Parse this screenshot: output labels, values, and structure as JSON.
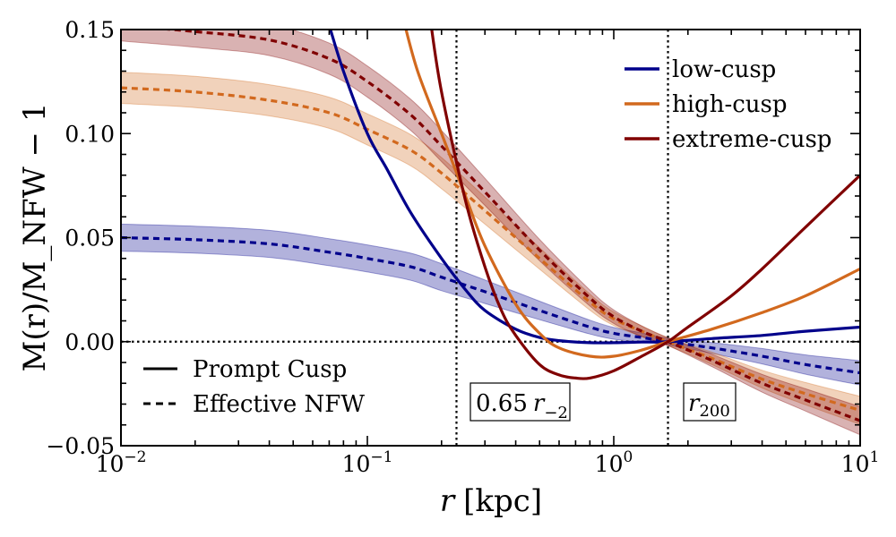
{
  "chart_data": {
    "type": "line",
    "xscale": "log",
    "xlim": [
      0.01,
      10
    ],
    "ylim": [
      -0.05,
      0.15
    ],
    "xlabel_italic": "r",
    "xlabel_unit": "[kpc]",
    "ylabel": "M(r)/M_NFW − 1",
    "x_ticks": [
      {
        "value": 0.01,
        "base": "10",
        "exp": "−2"
      },
      {
        "value": 0.1,
        "base": "10",
        "exp": "−1"
      },
      {
        "value": 1,
        "base": "10",
        "exp": "0"
      },
      {
        "value": 10,
        "base": "10",
        "exp": "1"
      }
    ],
    "y_ticks": [
      {
        "value": -0.05,
        "label": "−0.05"
      },
      {
        "value": 0.0,
        "label": "0.00"
      },
      {
        "value": 0.05,
        "label": "0.05"
      },
      {
        "value": 0.1,
        "label": "0.10"
      },
      {
        "value": 0.15,
        "label": "0.15"
      }
    ],
    "series": [
      {
        "name": "low-cusp",
        "color": "#00008b",
        "solid": {
          "x": [
            0.07,
            0.08,
            0.1,
            0.12,
            0.15,
            0.2,
            0.25,
            0.3,
            0.4,
            0.5,
            0.6,
            0.8,
            1.0,
            1.3,
            1.66,
            2.5,
            4,
            6,
            10
          ],
          "y": [
            0.152,
            0.13,
            0.1,
            0.083,
            0.062,
            0.04,
            0.025,
            0.015,
            0.006,
            0.002,
            0.0005,
            -0.0005,
            -0.0005,
            -0.0002,
            0.0,
            0.0015,
            0.003,
            0.005,
            0.007
          ]
        },
        "dashed": {
          "x": [
            0.01,
            0.02,
            0.04,
            0.07,
            0.1,
            0.15,
            0.2,
            0.3,
            0.5,
            0.8,
            1.0,
            1.3,
            1.66,
            2.5,
            4,
            6,
            10
          ],
          "y": [
            0.05,
            0.049,
            0.047,
            0.043,
            0.04,
            0.036,
            0.031,
            0.024,
            0.015,
            0.007,
            0.004,
            0.002,
            0.0,
            -0.003,
            -0.007,
            -0.011,
            -0.015
          ]
        },
        "band_halfwidth": 0.0065
      },
      {
        "name": "high-cusp",
        "color": "#d2691e",
        "solid": {
          "x": [
            0.14,
            0.16,
            0.2,
            0.25,
            0.3,
            0.4,
            0.5,
            0.6,
            0.8,
            1.0,
            1.3,
            1.66,
            2.5,
            4,
            6,
            10
          ],
          "y": [
            0.155,
            0.13,
            0.1,
            0.07,
            0.046,
            0.018,
            0.004,
            -0.003,
            -0.007,
            -0.007,
            -0.004,
            0.0,
            0.006,
            0.014,
            0.022,
            0.035
          ]
        },
        "dashed": {
          "x": [
            0.01,
            0.02,
            0.04,
            0.07,
            0.1,
            0.15,
            0.2,
            0.3,
            0.5,
            0.8,
            1.0,
            1.3,
            1.66,
            2.5,
            4,
            6,
            10
          ],
          "y": [
            0.122,
            0.12,
            0.116,
            0.11,
            0.102,
            0.092,
            0.081,
            0.063,
            0.04,
            0.019,
            0.011,
            0.005,
            0.0,
            -0.008,
            -0.018,
            -0.025,
            -0.033
          ]
        },
        "band_halfwidth": 0.0075
      },
      {
        "name": "extreme-cusp",
        "color": "#800000",
        "solid": {
          "x": [
            0.18,
            0.2,
            0.25,
            0.3,
            0.35,
            0.4,
            0.5,
            0.6,
            0.7,
            0.8,
            1.0,
            1.3,
            1.66,
            2.0,
            3.0,
            4.0,
            6.0,
            10
          ],
          "y": [
            0.155,
            0.12,
            0.068,
            0.036,
            0.015,
            0.003,
            -0.011,
            -0.016,
            -0.0175,
            -0.0175,
            -0.014,
            -0.007,
            0.0,
            0.007,
            0.022,
            0.035,
            0.055,
            0.08
          ]
        },
        "dashed": {
          "x": [
            0.01,
            0.02,
            0.04,
            0.07,
            0.1,
            0.15,
            0.2,
            0.3,
            0.5,
            0.8,
            1.0,
            1.3,
            1.66,
            2.5,
            4,
            6,
            10
          ],
          "y": [
            0.152,
            0.149,
            0.145,
            0.136,
            0.125,
            0.109,
            0.094,
            0.072,
            0.044,
            0.021,
            0.012,
            0.005,
            0.0,
            -0.009,
            -0.02,
            -0.028,
            -0.038
          ]
        },
        "band_halfwidth": 0.0075
      }
    ],
    "vertical_lines": [
      {
        "x": 0.23,
        "label_main": "0.65",
        "label_var": "r",
        "label_sub": "−2"
      },
      {
        "x": 1.66,
        "label_main": "",
        "label_var": "r",
        "label_sub": "200"
      }
    ],
    "horizontal_line": {
      "y": 0.0
    },
    "legend_series": [
      "low-cusp",
      "high-cusp",
      "extreme-cusp"
    ],
    "legend_series_position": "top-right",
    "legend_style": [
      {
        "label": "Prompt Cusp",
        "style": "solid"
      },
      {
        "label": "Effective NFW",
        "style": "dashed"
      }
    ],
    "legend_style_position": "bottom-left"
  }
}
